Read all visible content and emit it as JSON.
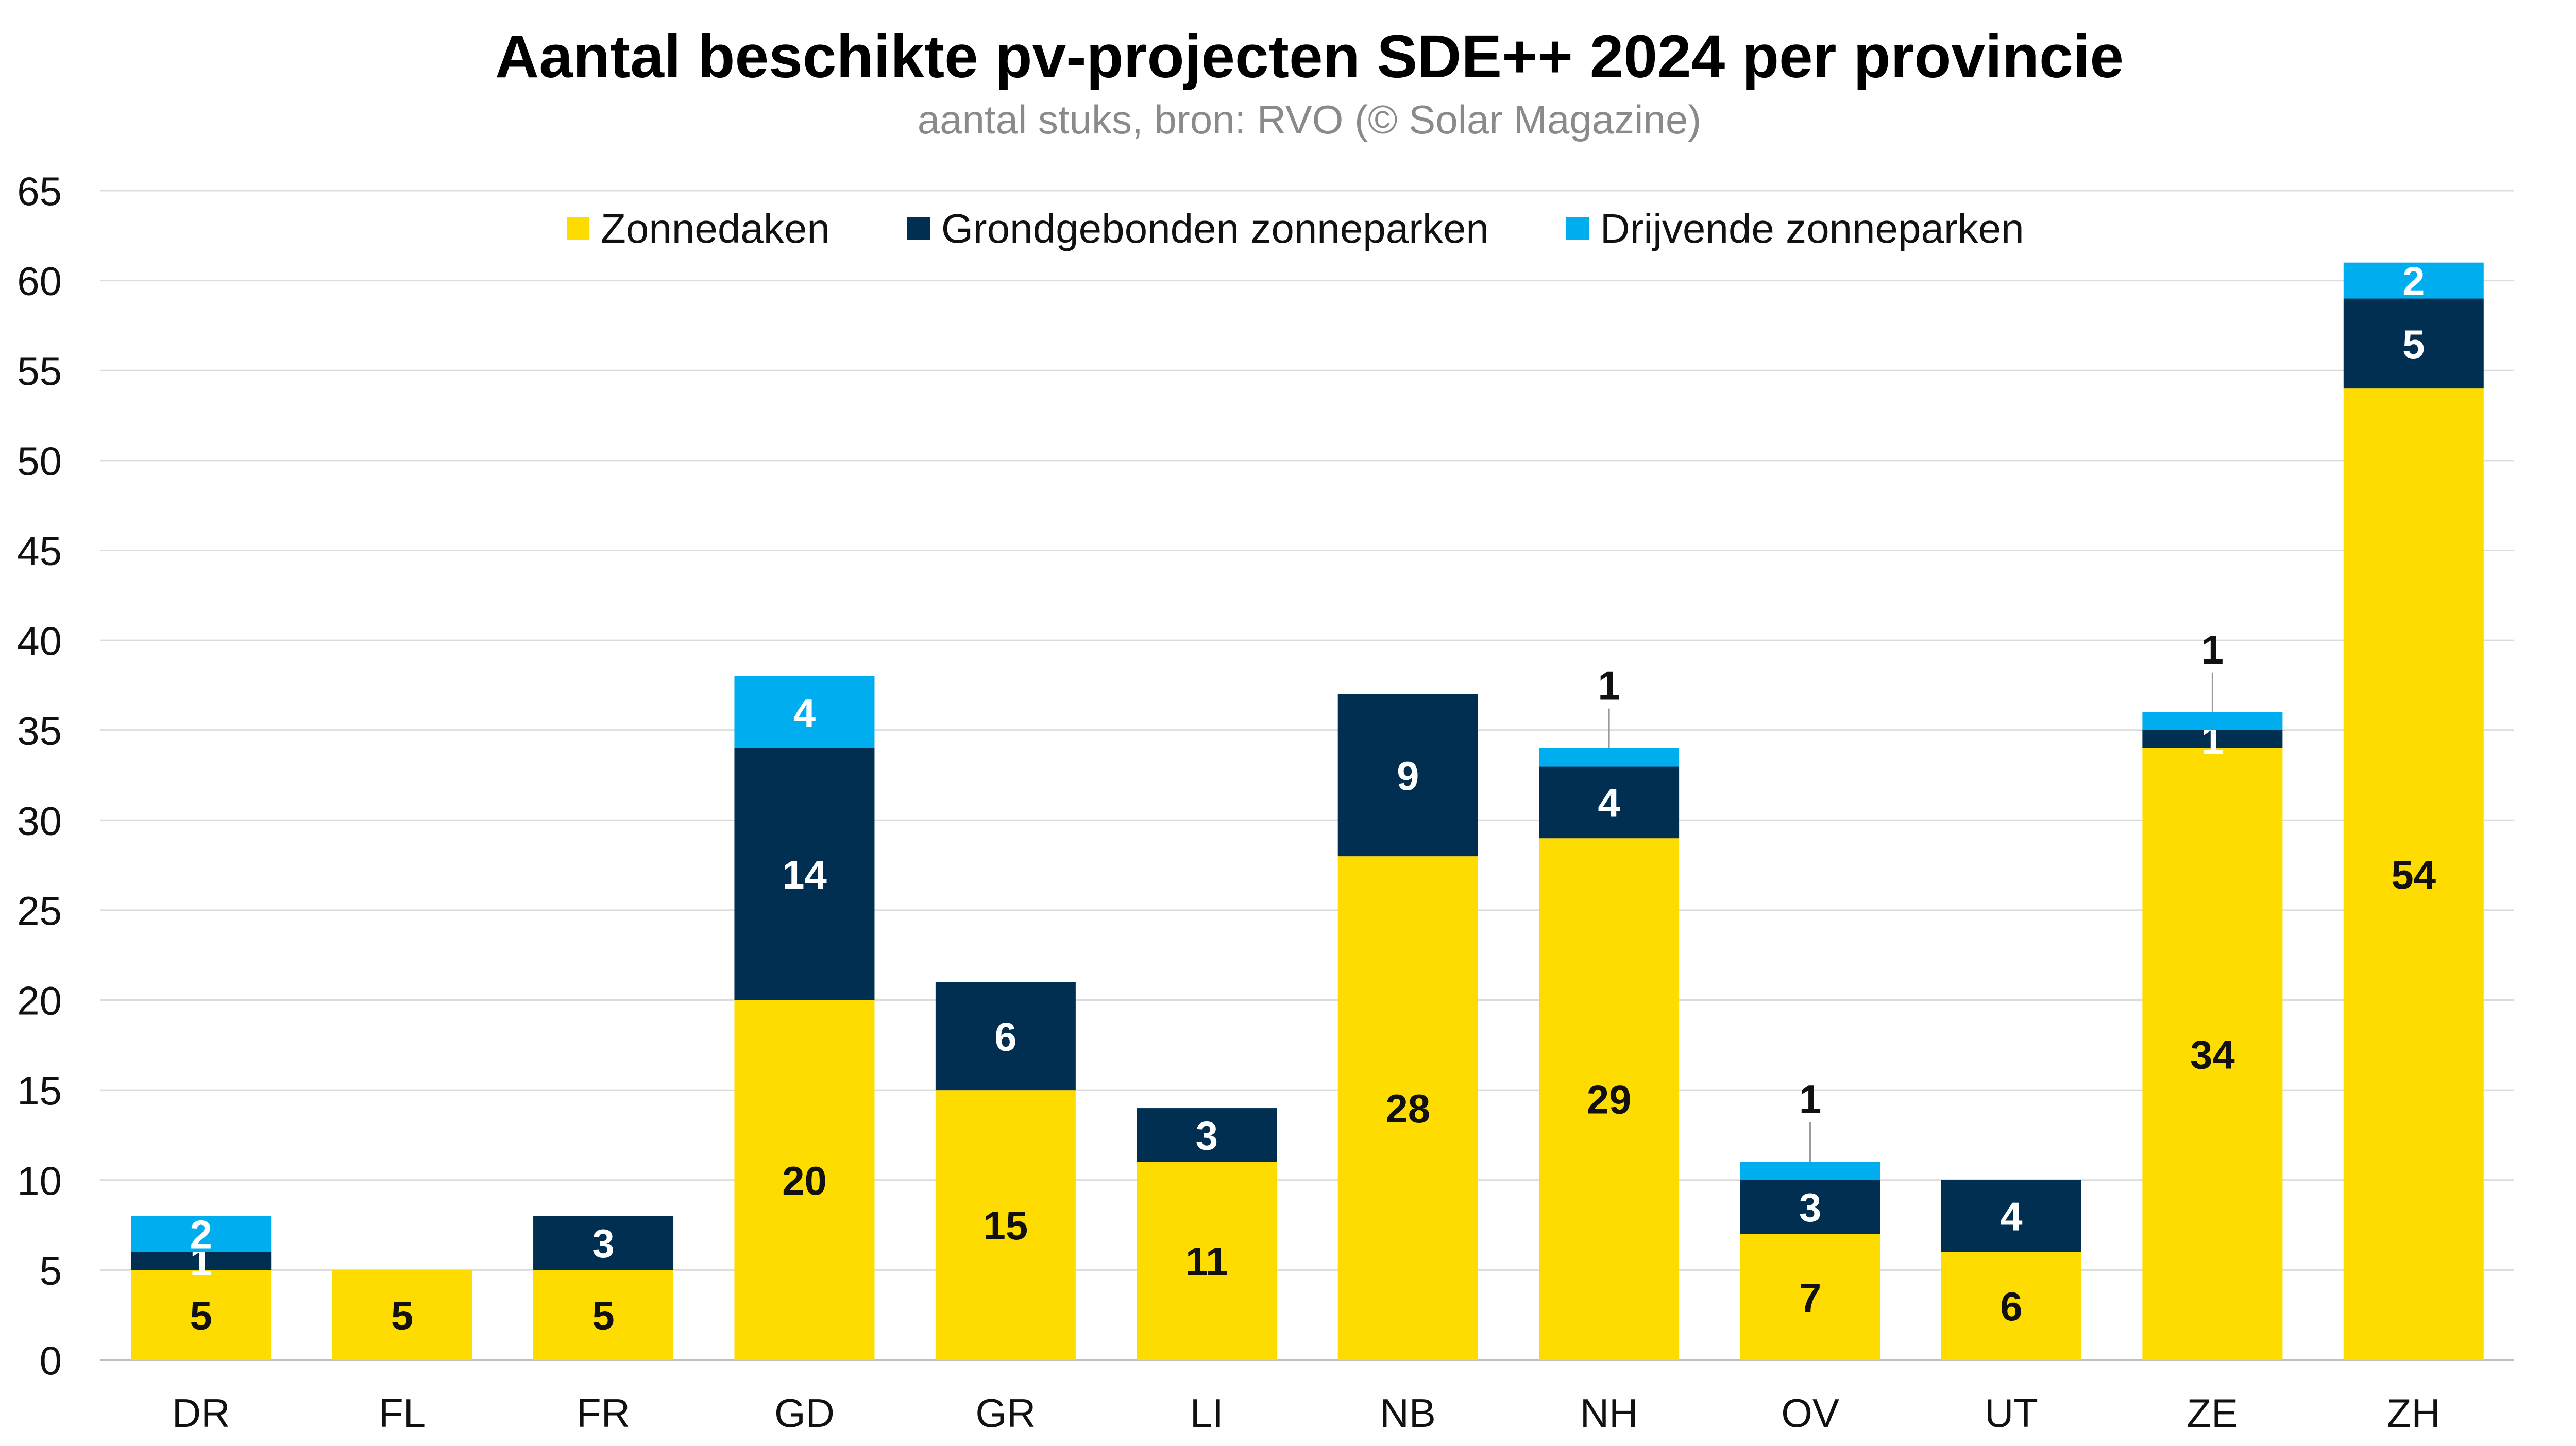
{
  "chart_data": {
    "type": "bar",
    "stacked": true,
    "title": "Aantal beschikte pv-projecten SDE++ 2024 per provincie",
    "subtitle": "aantal stuks, bron: RVO (© Solar Magazine)",
    "categories": [
      "DR",
      "FL",
      "FR",
      "GD",
      "GR",
      "LI",
      "NB",
      "NH",
      "OV",
      "UT",
      "ZE",
      "ZH"
    ],
    "series": [
      {
        "name": "Zonnedaken",
        "color": "#FFDC00",
        "label_color": "#111111",
        "values": [
          5,
          5,
          5,
          20,
          15,
          11,
          28,
          29,
          7,
          6,
          34,
          54
        ]
      },
      {
        "name": "Grondgebonden zonneparken",
        "color": "#002F52",
        "label_color": "#ffffff",
        "values": [
          1,
          0,
          3,
          14,
          6,
          3,
          9,
          4,
          3,
          4,
          1,
          5
        ]
      },
      {
        "name": "Drijvende zonneparken",
        "color": "#00AEEF",
        "label_color": "#ffffff",
        "values": [
          2,
          0,
          0,
          4,
          0,
          0,
          0,
          1,
          1,
          0,
          1,
          2
        ]
      }
    ],
    "ylim": [
      0,
      65
    ],
    "yticks": [
      0,
      5,
      10,
      15,
      20,
      25,
      30,
      35,
      40,
      45,
      50,
      55,
      60,
      65
    ],
    "grid": true,
    "legend_position": "top"
  }
}
